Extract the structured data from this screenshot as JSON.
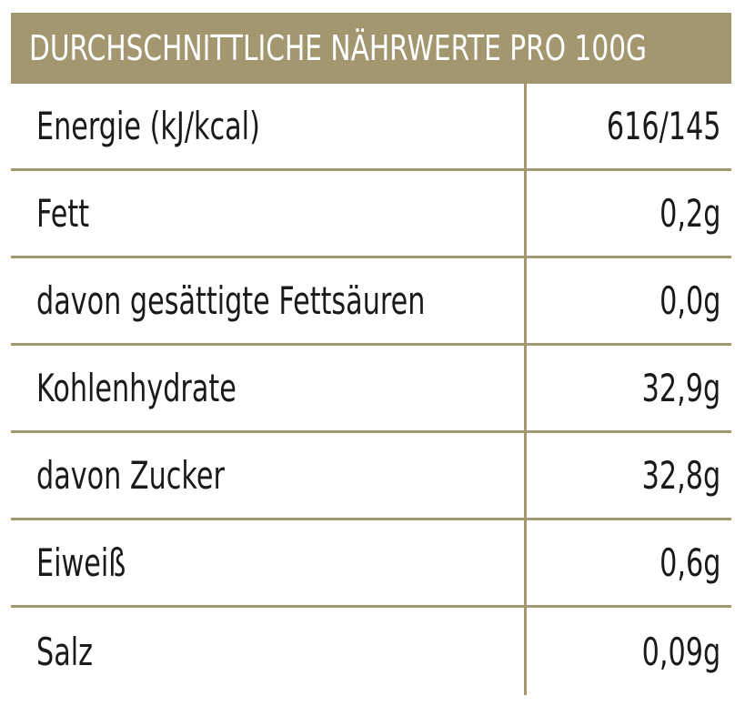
{
  "table": {
    "title": "DURCHSCHNITTLICHE NÄHRWERTE PRO 100G",
    "rows": [
      {
        "label": "Energie (kJ/kcal)",
        "value": "616/145"
      },
      {
        "label": "Fett",
        "value": "0,2g"
      },
      {
        "label": "davon gesättigte Fettsäuren",
        "value": "0,0g"
      },
      {
        "label": "Kohlenhydrate",
        "value": "32,9g"
      },
      {
        "label": "davon Zucker",
        "value": "32,8g"
      },
      {
        "label": "Eiweiß",
        "value": "0,6g"
      },
      {
        "label": "Salz",
        "value": "0,09g"
      }
    ]
  },
  "colors": {
    "accent": "#a39770",
    "text": "#1a1a1a",
    "background": "#ffffff"
  }
}
